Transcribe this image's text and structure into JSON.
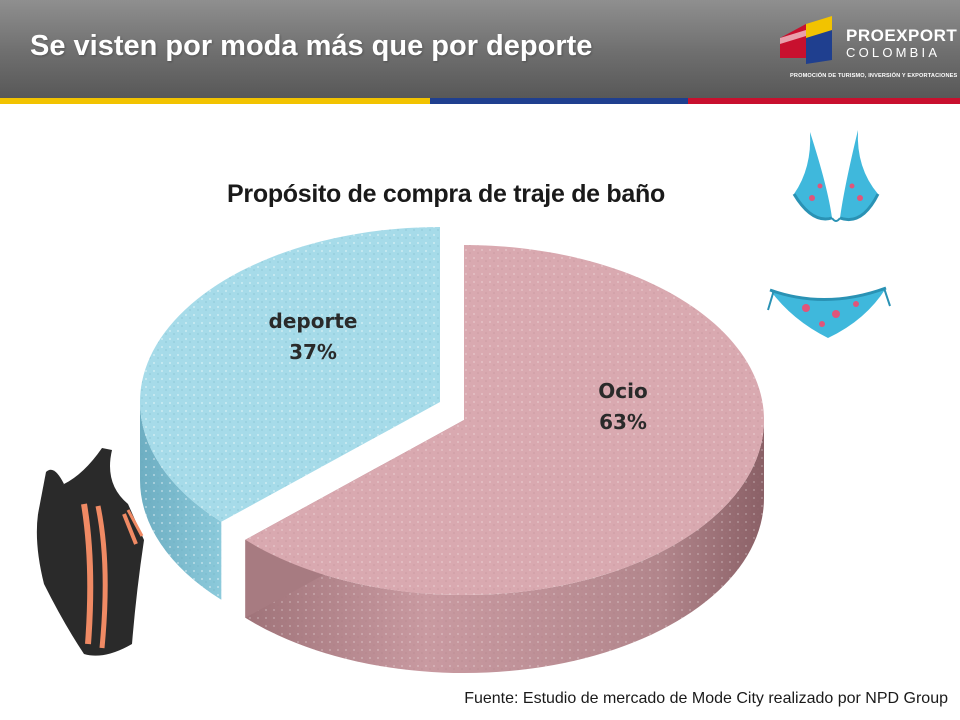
{
  "header": {
    "title": "Se visten por moda más que por deporte",
    "background": "#6e6e6e",
    "stripe_colors": [
      "#f2c300",
      "#1f3f8f",
      "#c8102e"
    ]
  },
  "logo": {
    "word1": "PROEXPORT",
    "word2": "COLOMBIA",
    "tagline": "PROMOCIÓN DE TURISMO, INVERSIÓN Y EXPORTACIONES",
    "colors": [
      "#f2c300",
      "#1f3f8f",
      "#c8102e"
    ]
  },
  "chart_data": {
    "type": "pie",
    "title": "Propósito de compra de traje de baño",
    "categories": [
      "Ocio",
      "deporte"
    ],
    "values": [
      63,
      37
    ],
    "unit": "%",
    "display_values": [
      "63%",
      "37%"
    ],
    "colors": [
      "#d9a9b0",
      "#a6dbe9"
    ],
    "exploded": "deporte",
    "three_d": true,
    "legend": "none"
  },
  "decorations": [
    "bikini-top-image",
    "bikini-bottom-image",
    "swimsuit-image"
  ],
  "footnote": "Fuente: Estudio de mercado de Mode City realizado por NPD Group"
}
